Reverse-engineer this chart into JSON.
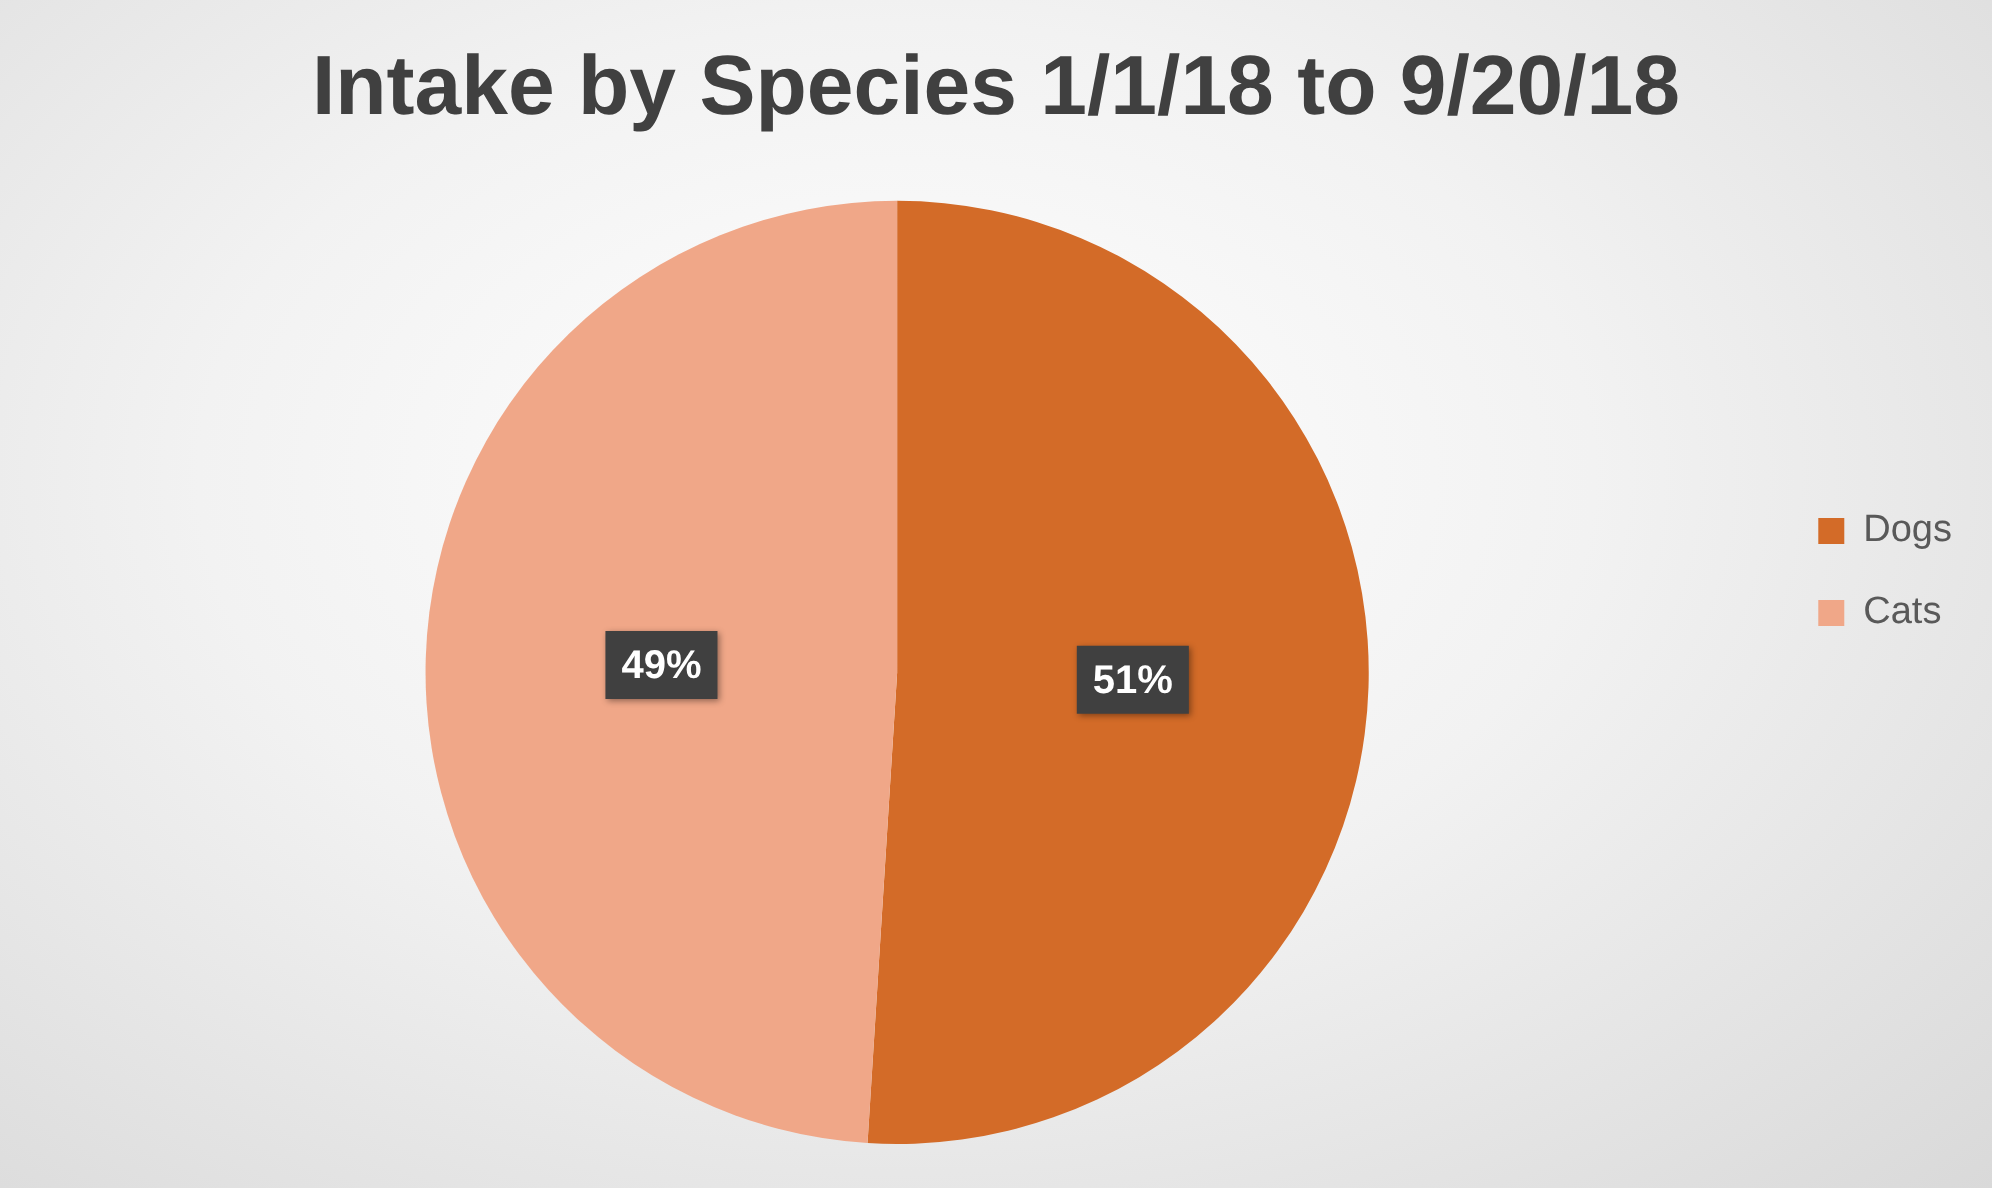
{
  "chart_data": {
    "type": "pie",
    "title": "Intake by Species 1/1/18 to 9/20/18",
    "categories": [
      "Dogs",
      "Cats"
    ],
    "values": [
      51,
      49
    ],
    "colors": [
      "#d36b28",
      "#f0a788"
    ],
    "value_labels": [
      "51%",
      "49%"
    ],
    "legend": "right"
  }
}
